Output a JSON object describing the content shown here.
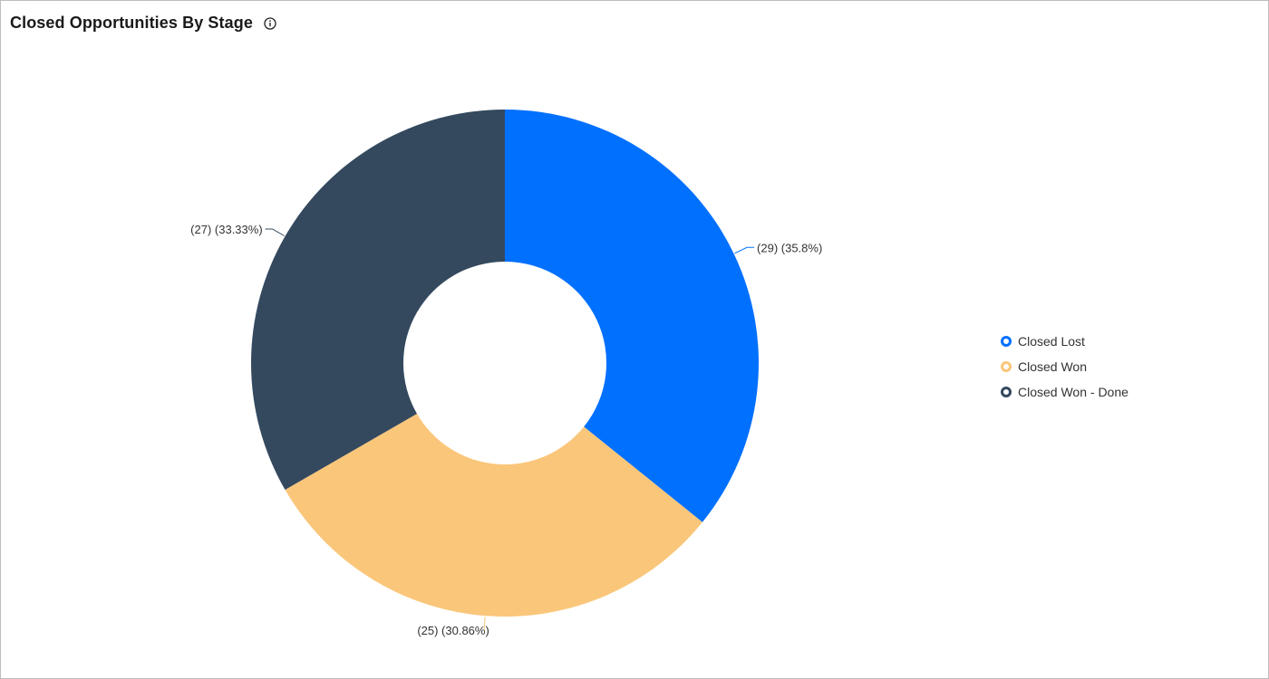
{
  "header": {
    "title": "Closed Opportunities By Stage",
    "info_icon": "info-icon"
  },
  "chart_data": {
    "type": "pie",
    "variant": "donut",
    "title": "Closed Opportunities By Stage",
    "slices": [
      {
        "name": "Closed Lost",
        "value": 29,
        "percent": 35.8,
        "label": "(29) (35.8%)",
        "color": "#0070ff"
      },
      {
        "name": "Closed Won",
        "value": 25,
        "percent": 30.86,
        "label": "(25) (30.86%)",
        "color": "#fac67a"
      },
      {
        "name": "Closed Won - Done",
        "value": 27,
        "percent": 33.33,
        "label": "(27) (33.33%)",
        "color": "#34495e"
      }
    ],
    "legend": {
      "placement": "right",
      "items": [
        "Closed Lost",
        "Closed Won",
        "Closed Won - Done"
      ]
    }
  }
}
